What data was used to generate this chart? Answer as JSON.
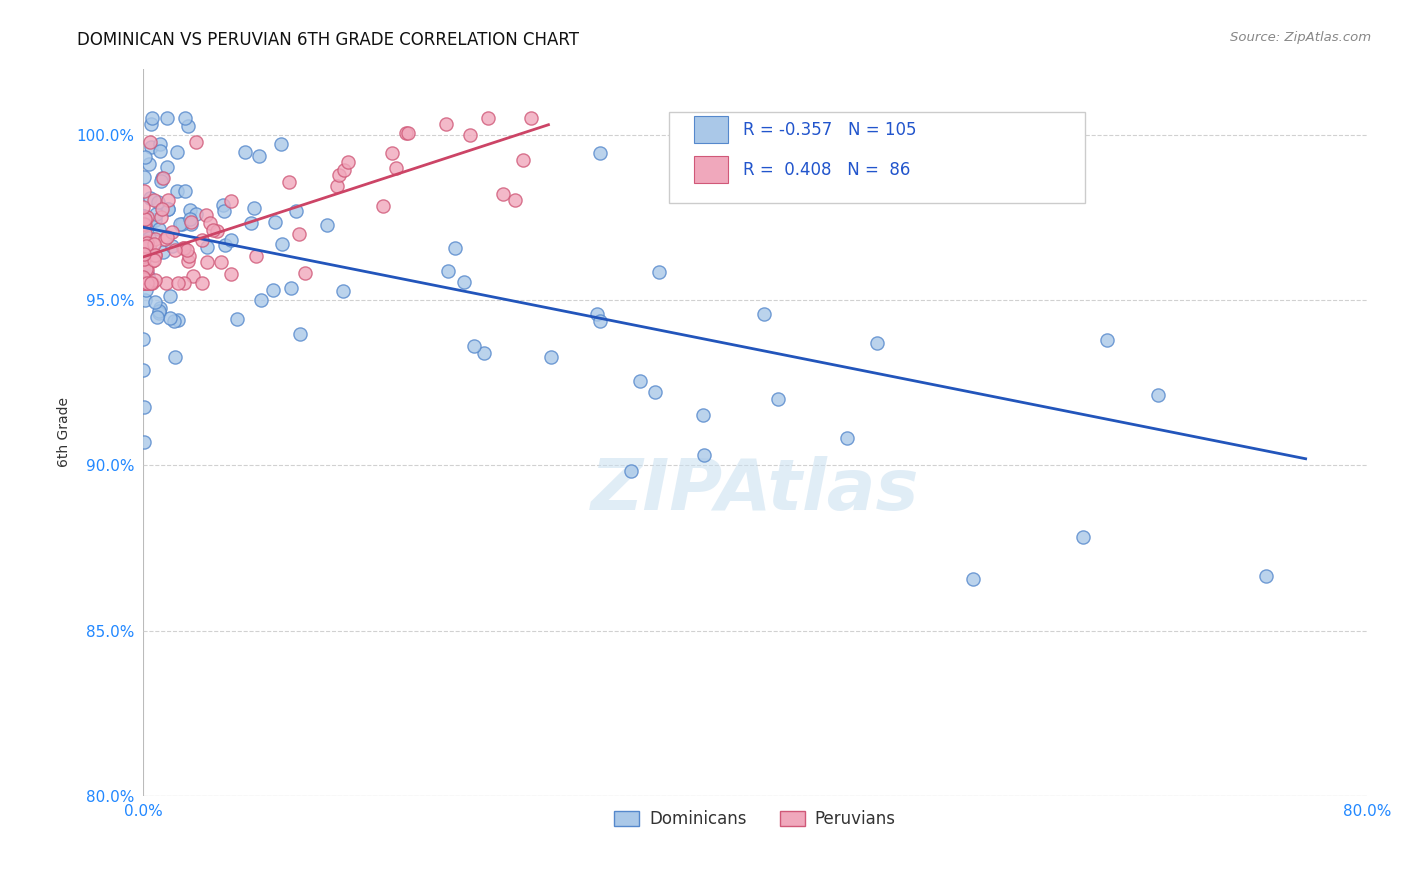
{
  "title": "DOMINICAN VS PERUVIAN 6TH GRADE CORRELATION CHART",
  "source": "Source: ZipAtlas.com",
  "ylabel": "6th Grade",
  "xlim": [
    0.0,
    0.8
  ],
  "ylim": [
    0.8,
    1.02
  ],
  "x_tick_positions": [
    0.0,
    0.1,
    0.2,
    0.3,
    0.4,
    0.5,
    0.6,
    0.7,
    0.8
  ],
  "x_tick_labels": [
    "0.0%",
    "",
    "",
    "",
    "",
    "",
    "",
    "",
    "80.0%"
  ],
  "y_tick_positions": [
    0.8,
    0.85,
    0.9,
    0.95,
    1.0
  ],
  "y_tick_labels": [
    "80.0%",
    "85.0%",
    "90.0%",
    "95.0%",
    "100.0%"
  ],
  "dominican_color": "#aac8e8",
  "dominican_edge": "#5588cc",
  "peruvian_color": "#f0a8bc",
  "peruvian_edge": "#d05878",
  "trend_dom_color": "#2255bb",
  "trend_per_color": "#cc4466",
  "R_dom": -0.357,
  "N_dom": 105,
  "R_per": 0.408,
  "N_per": 86,
  "legend_dom": "Dominicans",
  "legend_per": "Peruvians",
  "watermark": "ZIPAtlas",
  "trend_dom_x0": 0.0,
  "trend_dom_x1": 0.76,
  "trend_dom_y0": 0.972,
  "trend_dom_y1": 0.902,
  "trend_per_x0": 0.0,
  "trend_per_x1": 0.265,
  "trend_per_y0": 0.963,
  "trend_per_y1": 1.003
}
